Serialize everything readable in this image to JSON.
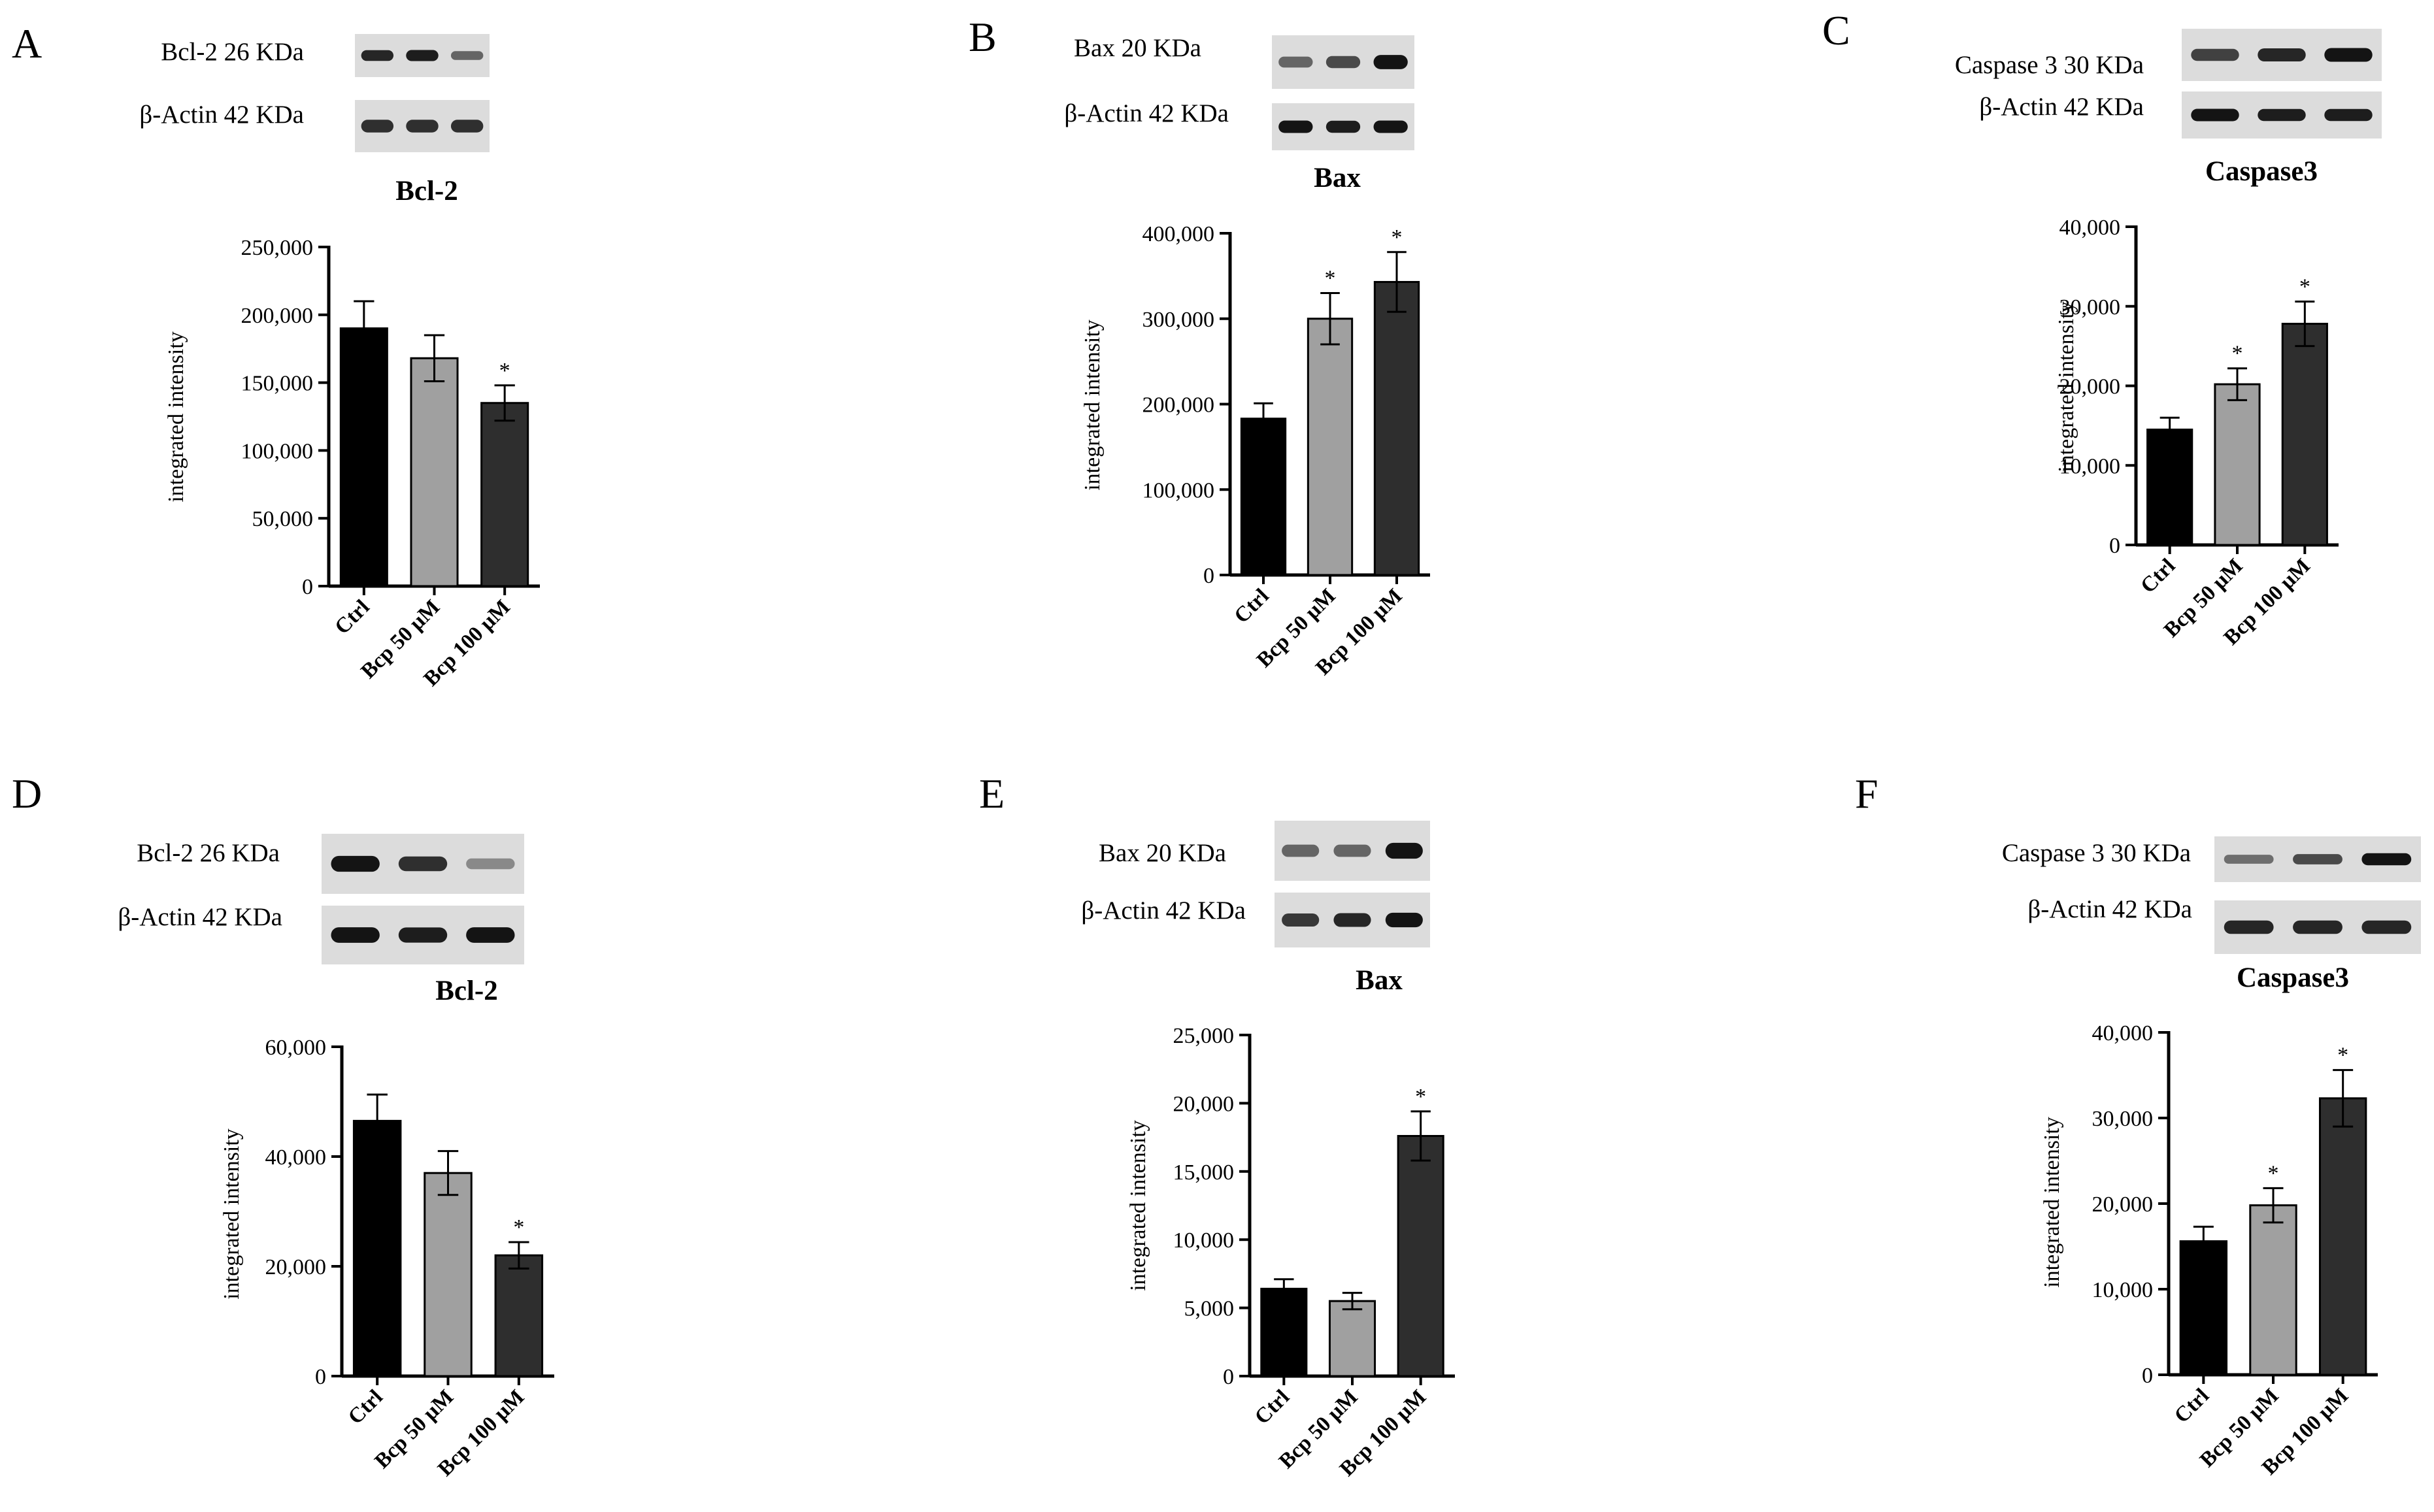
{
  "figure": {
    "panels": [
      "A",
      "B",
      "C",
      "D",
      "E",
      "F"
    ]
  },
  "blots": [
    {
      "target": "Bcl-2 26 KDa",
      "control": "β-Actin 42 KDa"
    },
    {
      "target": "Bax 20 KDa",
      "control": "β-Actin 42 KDa"
    },
    {
      "target": "Caspase 3 30 KDa",
      "control": "β-Actin 42 KDa"
    },
    {
      "target": "Bcl-2 26 KDa",
      "control": "β-Actin 42 KDa"
    },
    {
      "target": "Bax 20 KDa",
      "control": "β-Actin 42 KDa"
    },
    {
      "target": "Caspase 3  30 KDa",
      "control": "β-Actin 42 KDa"
    }
  ],
  "chart_data": [
    {
      "panel": "A",
      "type": "bar",
      "title": "Bcl-2",
      "xlabel": "",
      "ylabel": "integrated intensity",
      "categories": [
        "Ctrl",
        "Bcp 50 μM",
        "Bcp 100 μM"
      ],
      "values": [
        190000,
        168000,
        135000
      ],
      "errors": [
        20000,
        17000,
        13000
      ],
      "significance": [
        "",
        "",
        "*"
      ],
      "ylim": [
        0,
        250000
      ],
      "yticks": [
        0,
        50000,
        100000,
        150000,
        200000,
        250000
      ],
      "ytick_labels": [
        "0",
        "50,000",
        "100,000",
        "150,000",
        "200,000",
        "250,000"
      ],
      "colors": [
        "#000000",
        "#a0a0a0",
        "#2e2e2e"
      ]
    },
    {
      "panel": "B",
      "type": "bar",
      "title": "Bax",
      "xlabel": "",
      "ylabel": "integrated intensity",
      "categories": [
        "Ctrl",
        "Bcp 50 μM",
        "Bcp 100 μM"
      ],
      "values": [
        183000,
        300000,
        343000
      ],
      "errors": [
        18000,
        30000,
        35000
      ],
      "significance": [
        "",
        "*",
        "*"
      ],
      "ylim": [
        0,
        400000
      ],
      "yticks": [
        0,
        100000,
        200000,
        300000,
        400000
      ],
      "ytick_labels": [
        "0",
        "100,000",
        "200,000",
        "300,000",
        "400,000"
      ],
      "colors": [
        "#000000",
        "#a0a0a0",
        "#2e2e2e"
      ]
    },
    {
      "panel": "C",
      "type": "bar",
      "title": "Caspase3",
      "xlabel": "",
      "ylabel": "integrated intensity",
      "categories": [
        "Ctrl",
        "Bcp 50 μM",
        "Bcp 100 μM"
      ],
      "values": [
        14500,
        20200,
        27800
      ],
      "errors": [
        1500,
        2000,
        2800
      ],
      "significance": [
        "",
        "*",
        "*"
      ],
      "ylim": [
        0,
        40000
      ],
      "yticks": [
        0,
        10000,
        20000,
        30000,
        40000
      ],
      "ytick_labels": [
        "0",
        "10,000",
        "20,000",
        "30,000",
        "40,000"
      ],
      "colors": [
        "#000000",
        "#a0a0a0",
        "#2e2e2e"
      ]
    },
    {
      "panel": "D",
      "type": "bar",
      "title": "Bcl-2",
      "xlabel": "",
      "ylabel": "integrated intensity",
      "categories": [
        "Ctrl",
        "Bcp 50 μM",
        "Bcp 100 μM"
      ],
      "values": [
        46500,
        37000,
        22000
      ],
      "errors": [
        4800,
        4000,
        2400
      ],
      "significance": [
        "",
        "",
        "*"
      ],
      "ylim": [
        0,
        60000
      ],
      "yticks": [
        0,
        20000,
        40000,
        60000
      ],
      "ytick_labels": [
        "0",
        "20,000",
        "40,000",
        "60,000"
      ],
      "colors": [
        "#000000",
        "#a0a0a0",
        "#2e2e2e"
      ]
    },
    {
      "panel": "E",
      "type": "bar",
      "title": "Bax",
      "xlabel": "",
      "ylabel": "integrated intensity",
      "categories": [
        "Ctrl",
        "Bcp 50 μM",
        "Bcp 100 μM"
      ],
      "values": [
        6400,
        5500,
        17600
      ],
      "errors": [
        700,
        600,
        1800
      ],
      "significance": [
        "",
        "",
        "*"
      ],
      "ylim": [
        0,
        25000
      ],
      "yticks": [
        0,
        5000,
        10000,
        15000,
        20000,
        25000
      ],
      "ytick_labels": [
        "0",
        "5,000",
        "10,000",
        "15,000",
        "20,000",
        "25,000"
      ],
      "colors": [
        "#000000",
        "#a0a0a0",
        "#2e2e2e"
      ]
    },
    {
      "panel": "F",
      "type": "bar",
      "title": "Caspase3",
      "xlabel": "",
      "ylabel": "integrated intensity",
      "categories": [
        "Ctrl",
        "Bcp 50 μM",
        "Bcp 100 μM"
      ],
      "values": [
        15600,
        19800,
        32300
      ],
      "errors": [
        1700,
        2000,
        3300
      ],
      "significance": [
        "",
        "*",
        "*"
      ],
      "ylim": [
        0,
        40000
      ],
      "yticks": [
        0,
        10000,
        20000,
        30000,
        40000
      ],
      "ytick_labels": [
        "0",
        "10,000",
        "20,000",
        "30,000",
        "40,000"
      ],
      "colors": [
        "#000000",
        "#a0a0a0",
        "#2e2e2e"
      ]
    }
  ]
}
